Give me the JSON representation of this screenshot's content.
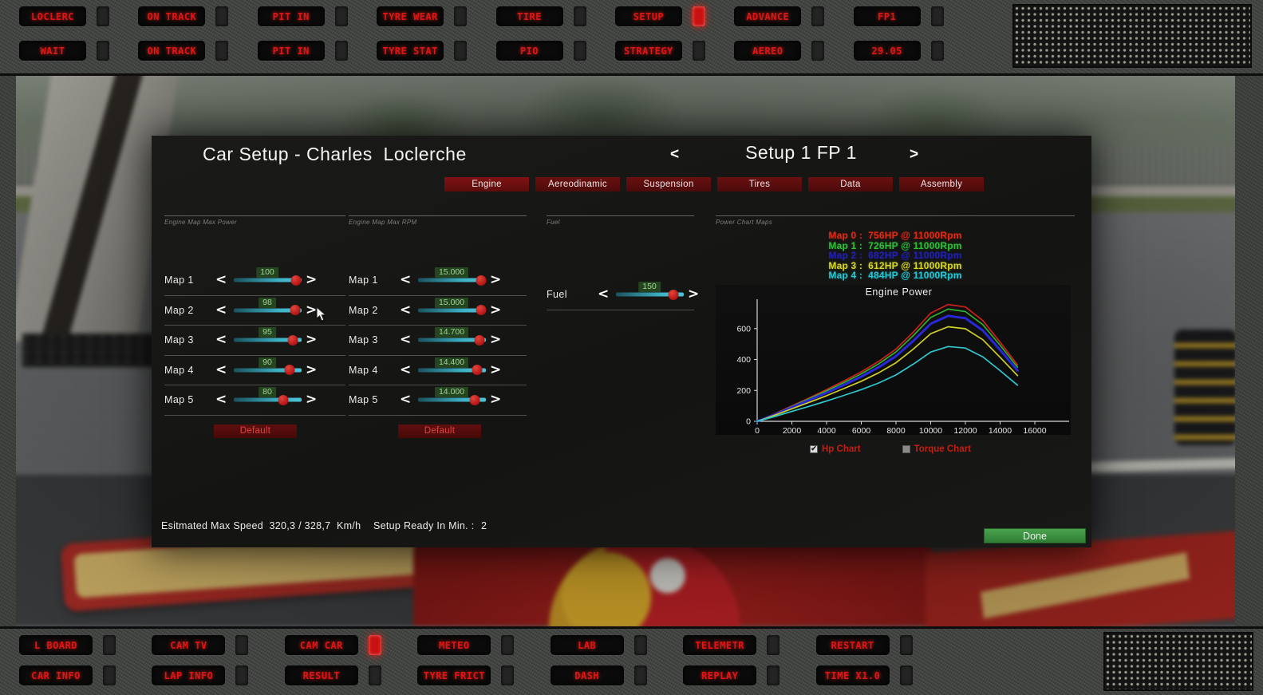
{
  "top_bar": {
    "row1": [
      {
        "label": "LOCLERC",
        "lit": false
      },
      {
        "label": "ON TRACK",
        "lit": false
      },
      {
        "label": "PIT IN",
        "lit": false
      },
      {
        "label": "TYRE WEAR",
        "lit": false
      },
      {
        "label": "TIRE",
        "lit": false
      },
      {
        "label": "SETUP",
        "lit": true
      },
      {
        "label": "ADVANCE",
        "lit": false
      },
      {
        "label": "FP1",
        "lit": false
      }
    ],
    "row2": [
      {
        "label": "WAIT",
        "lit": false
      },
      {
        "label": "ON TRACK",
        "lit": false
      },
      {
        "label": "PIT IN",
        "lit": false
      },
      {
        "label": "TYRE STAT",
        "lit": false
      },
      {
        "label": "PIO",
        "lit": false
      },
      {
        "label": "STRATEGY",
        "lit": false
      },
      {
        "label": "AEREO",
        "lit": false
      },
      {
        "label": "29.05",
        "lit": false
      }
    ]
  },
  "bottom_bar": {
    "row1": [
      {
        "label": "L BOARD",
        "lit": false
      },
      {
        "label": "CAM TV",
        "lit": false
      },
      {
        "label": "CAM CAR",
        "lit": true
      },
      {
        "label": "METEO",
        "lit": false
      },
      {
        "label": "LAB",
        "lit": false
      },
      {
        "label": "TELEMETR",
        "lit": false
      },
      {
        "label": "RESTART",
        "lit": false
      }
    ],
    "row2": [
      {
        "label": "CAR INFO",
        "lit": false
      },
      {
        "label": "LAP INFO",
        "lit": false
      },
      {
        "label": "RESULT",
        "lit": false
      },
      {
        "label": "TYRE FRICT",
        "lit": false
      },
      {
        "label": "DASH",
        "lit": false
      },
      {
        "label": "REPLAY",
        "lit": false
      },
      {
        "label": "TIME X1.0",
        "lit": false
      }
    ]
  },
  "dialog": {
    "title": "Car Setup - Charles  Loclerche",
    "setup_prev": "<",
    "setup_label": "Setup 1 FP 1",
    "setup_next": ">",
    "tabs": [
      {
        "label": "Engine",
        "active": true
      },
      {
        "label": "Aereodinamic",
        "active": false
      },
      {
        "label": "Suspension",
        "active": false
      },
      {
        "label": "Tires",
        "active": false
      },
      {
        "label": "Data",
        "active": false
      },
      {
        "label": "Assembly",
        "active": false
      }
    ],
    "power_section": {
      "header": "Engine Map Max Power",
      "default_label": "Default",
      "rows": [
        {
          "label": "Map 1",
          "value": "100",
          "pct": 92
        },
        {
          "label": "Map 2",
          "value": "98",
          "pct": 90
        },
        {
          "label": "Map 3",
          "value": "95",
          "pct": 87
        },
        {
          "label": "Map 4",
          "value": "90",
          "pct": 82
        },
        {
          "label": "Map 5",
          "value": "80",
          "pct": 73
        }
      ]
    },
    "rpm_section": {
      "header": "Engine Map Max RPM",
      "default_label": "Default",
      "rows": [
        {
          "label": "Map 1",
          "value": "15.000",
          "pct": 93
        },
        {
          "label": "Map 2",
          "value": "15.000",
          "pct": 93
        },
        {
          "label": "Map 3",
          "value": "14.700",
          "pct": 90
        },
        {
          "label": "Map 4",
          "value": "14.400",
          "pct": 87
        },
        {
          "label": "Map 5",
          "value": "14.000",
          "pct": 84
        }
      ]
    },
    "fuel_section": {
      "header": "Fuel",
      "rows": [
        {
          "label": "Fuel",
          "value": "150",
          "pct": 85
        }
      ]
    },
    "chart_section_header": "Power Chart Maps",
    "legend": [
      {
        "label": "Map 0 :",
        "value": "756HP @ 11000Rpm",
        "color": "#e22a14"
      },
      {
        "label": "Map 1 :",
        "value": "726HP @ 11000Rpm",
        "color": "#2fbf3a"
      },
      {
        "label": "Map 2 :",
        "value": "682HP @ 11000Rpm",
        "color": "#2020b8"
      },
      {
        "label": "Map 3 :",
        "value": "612HP @ 11000Rpm",
        "color": "#d9d922"
      },
      {
        "label": "Map 4 :",
        "value": "484HP @ 11000Rpm",
        "color": "#23cbd9"
      }
    ],
    "checkboxes": [
      {
        "label": "Hp Chart",
        "checked": true
      },
      {
        "label": "Torque Chart",
        "checked": false
      }
    ],
    "footer": {
      "speed_label": "Esitmated Max Speed  320,3 / 328,7  Km/h",
      "ready_label": "Setup Ready In Min. :",
      "ready_value": "2",
      "done_label": "Done"
    }
  },
  "chart_data": {
    "type": "line",
    "title": "Engine Power",
    "xlabel": "",
    "ylabel": "",
    "x": [
      0,
      1000,
      2000,
      3000,
      4000,
      5000,
      6000,
      7000,
      8000,
      9000,
      10000,
      11000,
      12000,
      13000,
      14000,
      15000
    ],
    "x_ticks": [
      0,
      2000,
      4000,
      6000,
      8000,
      10000,
      12000,
      14000,
      16000
    ],
    "y_ticks": [
      0,
      200,
      400,
      600
    ],
    "xlim": [
      0,
      16400
    ],
    "ylim": [
      0,
      790
    ],
    "grid": false,
    "legend_position": "above chart as colored text lines",
    "series": [
      {
        "name": "Map 0",
        "color": "#cc2018",
        "width": 1.7,
        "peak": "756HP @ 11000Rpm",
        "values": [
          0,
          48,
          100,
          152,
          205,
          262,
          320,
          388,
          468,
          578,
          700,
          756,
          740,
          652,
          512,
          365
        ]
      },
      {
        "name": "Map 1",
        "color": "#2faf30",
        "width": 1.7,
        "peak": "726HP @ 11000Rpm",
        "values": [
          0,
          46,
          96,
          146,
          197,
          251,
          307,
          372,
          449,
          555,
          672,
          726,
          710,
          626,
          492,
          350
        ]
      },
      {
        "name": "Map 2",
        "color": "#2828d8",
        "width": 3,
        "peak": "682HP @ 11000Rpm",
        "values": [
          0,
          43,
          90,
          137,
          185,
          236,
          289,
          350,
          422,
          521,
          631,
          682,
          667,
          588,
          462,
          329
        ]
      },
      {
        "name": "Map 3",
        "color": "#cfcf25",
        "width": 1.7,
        "peak": "612HP @ 11000Rpm",
        "values": [
          0,
          39,
          81,
          123,
          166,
          212,
          259,
          314,
          379,
          468,
          567,
          612,
          599,
          528,
          414,
          296
        ]
      },
      {
        "name": "Map 4",
        "color": "#2fc8cf",
        "width": 1.7,
        "peak": "484HP @ 11000Rpm",
        "values": [
          0,
          31,
          64,
          97,
          131,
          168,
          205,
          248,
          300,
          370,
          448,
          484,
          474,
          417,
          328,
          234
        ]
      }
    ]
  }
}
